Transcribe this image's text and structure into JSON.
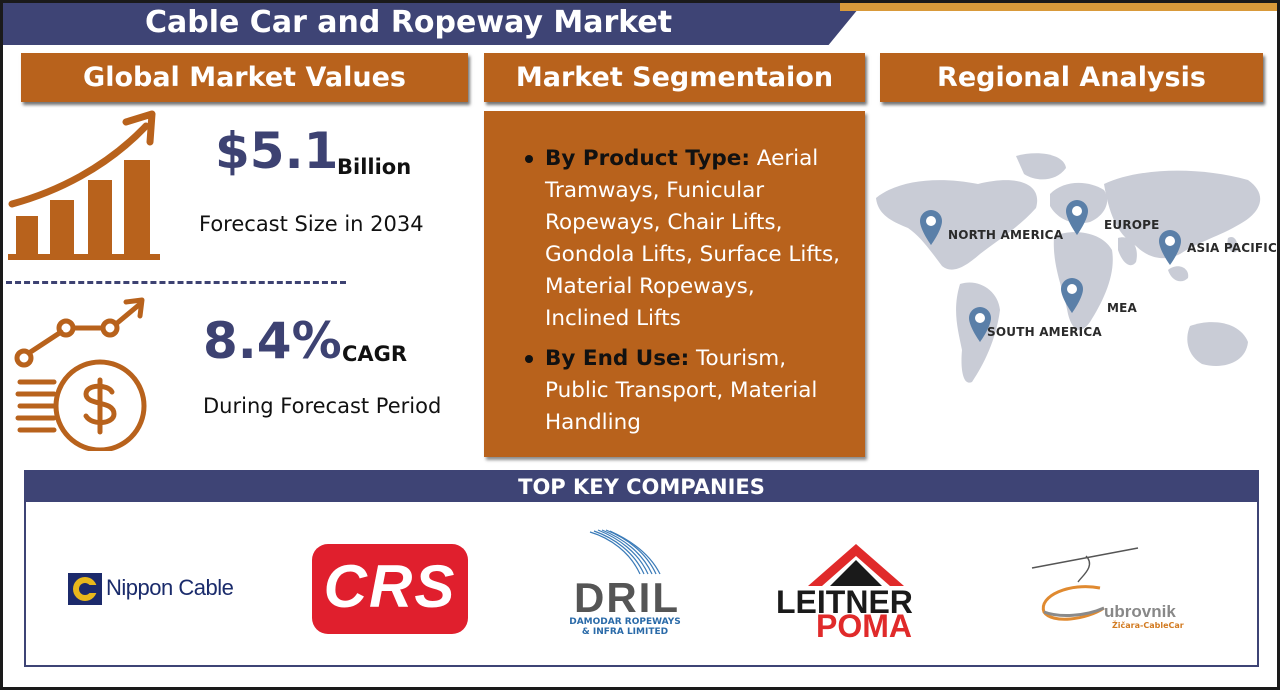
{
  "title": "Cable Car and Ropeway Market",
  "sections": {
    "global": "Global Market Values",
    "segmentation": "Market Segmentaion",
    "regional": "Regional Analysis"
  },
  "stats": {
    "forecast_value": "$5.1",
    "forecast_unit": "Billion",
    "forecast_desc": "Forecast Size in 2034",
    "cagr_value": "8.4%",
    "cagr_unit": "CAGR",
    "cagr_desc": "During Forecast Period"
  },
  "segmentation": [
    {
      "label": "By Product Type:",
      "text": " Aerial Tramways, Funicular Ropeways, Chair Lifts, Gondola Lifts, Surface Lifts, Material Ropeways, Inclined Lifts"
    },
    {
      "label": "By End Use:",
      "text": " Tourism, Public Transport, Material Handling"
    }
  ],
  "regions": [
    "NORTH AMERICA",
    "EUROPE",
    "ASIA PACIFIC",
    "MEA",
    "SOUTH AMERICA"
  ],
  "companies_title": "TOP KEY COMPANIES",
  "companies": {
    "nippon": "Nippon Cable",
    "crs": "CRS",
    "dril": "DRIL",
    "dril_sub1": "DAMODAR ROPEWAYS",
    "dril_sub2": "& INFRA LIMITED",
    "leitner1": "LEITNER",
    "leitner2": "POMA",
    "dubrovnik": "ubrovnik",
    "dubrovnik_sub": "Žičara-CableCar"
  },
  "colors": {
    "navy": "#3e4475",
    "orange": "#b8621c",
    "gold": "#d99a3a"
  },
  "icons": [
    "growth-chart-icon",
    "coins-dollar-icon",
    "location-pin-icon"
  ]
}
